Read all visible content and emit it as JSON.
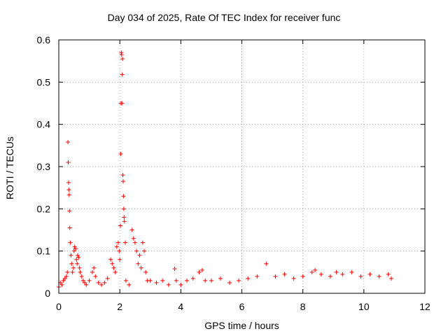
{
  "chart_data": {
    "type": "scatter",
    "title": "Day 034 of 2025, Rate Of TEC Index for receiver func",
    "xlabel": "GPS time / hours",
    "ylabel": "ROTI / TECUs",
    "xlim": [
      0,
      12
    ],
    "ylim": [
      0,
      0.6
    ],
    "xticks": [
      "0",
      "2",
      "4",
      "6",
      "8",
      "10",
      "12"
    ],
    "yticks": [
      "0",
      "0.1",
      "0.2",
      "0.3",
      "0.4",
      "0.5",
      "0.6"
    ],
    "grid": true,
    "marker": "+",
    "color": "#ff0000",
    "series": [
      {
        "x": [
          0.0,
          0.05,
          0.1,
          0.15,
          0.2,
          0.25,
          0.28,
          0.3,
          0.31,
          0.32,
          0.33,
          0.34,
          0.35,
          0.36,
          0.38,
          0.4,
          0.42,
          0.45,
          0.48,
          0.5,
          0.52,
          0.55,
          0.58,
          0.6,
          0.62,
          0.65,
          0.68,
          0.7,
          0.75,
          0.8,
          0.85,
          0.9,
          1.0,
          1.1,
          1.15,
          1.2,
          1.3,
          1.4,
          1.5,
          1.6,
          1.7,
          1.75,
          1.8,
          1.85,
          1.9,
          1.95,
          1.98,
          2.0,
          2.02,
          2.03,
          2.04,
          2.05,
          2.06,
          2.07,
          2.08,
          2.09,
          2.1,
          2.11,
          2.12,
          2.13,
          2.14,
          2.15,
          2.18,
          2.2,
          2.3,
          2.4,
          2.45,
          2.5,
          2.55,
          2.6,
          2.65,
          2.7,
          2.75,
          2.8,
          2.85,
          2.9,
          3.0,
          3.2,
          3.4,
          3.6,
          3.8,
          3.85,
          4.0,
          4.2,
          4.4,
          4.6,
          4.7,
          4.8,
          5.0,
          5.3,
          5.6,
          5.9,
          6.2,
          6.5,
          6.8,
          7.1,
          7.4,
          7.7,
          8.0,
          8.3,
          8.4,
          8.6,
          8.9,
          9.1,
          9.3,
          9.6,
          9.9,
          10.2,
          10.5,
          10.8,
          10.9
        ],
        "y": [
          0.015,
          0.025,
          0.02,
          0.03,
          0.035,
          0.04,
          0.05,
          0.358,
          0.31,
          0.262,
          0.245,
          0.233,
          0.195,
          0.155,
          0.12,
          0.09,
          0.07,
          0.05,
          0.06,
          0.1,
          0.11,
          0.105,
          0.08,
          0.07,
          0.09,
          0.085,
          0.06,
          0.05,
          0.04,
          0.03,
          0.025,
          0.02,
          0.03,
          0.05,
          0.06,
          0.04,
          0.025,
          0.02,
          0.025,
          0.035,
          0.08,
          0.07,
          0.06,
          0.05,
          0.11,
          0.12,
          0.1,
          0.08,
          0.16,
          0.33,
          0.45,
          0.57,
          0.565,
          0.45,
          0.518,
          0.555,
          0.28,
          0.265,
          0.23,
          0.2,
          0.18,
          0.17,
          0.12,
          0.03,
          0.02,
          0.15,
          0.13,
          0.12,
          0.1,
          0.07,
          0.09,
          0.06,
          0.12,
          0.1,
          0.05,
          0.03,
          0.03,
          0.025,
          0.03,
          0.02,
          0.058,
          0.03,
          0.02,
          0.03,
          0.035,
          0.05,
          0.055,
          0.03,
          0.03,
          0.035,
          0.025,
          0.03,
          0.035,
          0.04,
          0.07,
          0.04,
          0.045,
          0.035,
          0.04,
          0.05,
          0.055,
          0.045,
          0.04,
          0.05,
          0.045,
          0.05,
          0.04,
          0.045,
          0.04,
          0.045,
          0.035
        ]
      }
    ]
  }
}
